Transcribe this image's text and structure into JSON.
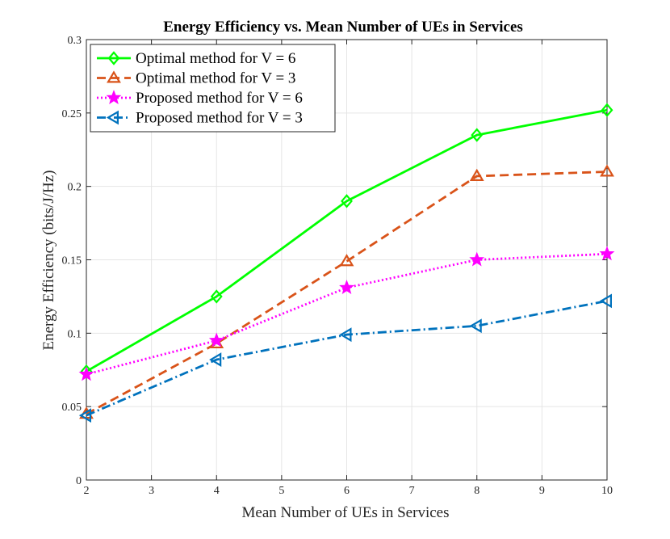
{
  "chart_data": {
    "type": "line",
    "title": "Energy Efficiency vs. Mean Number of UEs in Services",
    "xlabel": "Mean Number of UEs in Services",
    "ylabel": "Energy Efficiency (bits/J/Hz)",
    "xlim": [
      2,
      10
    ],
    "ylim": [
      0,
      0.3
    ],
    "xticks": [
      2,
      3,
      4,
      5,
      6,
      7,
      8,
      9,
      10
    ],
    "yticks": [
      0,
      0.05,
      0.1,
      0.15,
      0.2,
      0.25,
      0.3
    ],
    "xtick_labels": [
      "2",
      "3",
      "4",
      "5",
      "6",
      "7",
      "8",
      "9",
      "10"
    ],
    "ytick_labels": [
      "0",
      "0.05",
      "0.1",
      "0.15",
      "0.2",
      "0.25",
      "0.3"
    ],
    "grid": true,
    "legend_position": "top-left",
    "x": [
      2,
      4,
      6,
      8,
      10
    ],
    "series": [
      {
        "name": "Optimal method for V = 6",
        "values": [
          0.074,
          0.125,
          0.19,
          0.235,
          0.252
        ],
        "color": "#00ff00",
        "dash": "solid",
        "marker": "diamond"
      },
      {
        "name": "Optimal method for V = 3",
        "values": [
          0.045,
          0.093,
          0.149,
          0.207,
          0.21
        ],
        "color": "#d95319",
        "dash": "dashed",
        "marker": "triangle-up"
      },
      {
        "name": "Proposed method for V = 6",
        "values": [
          0.072,
          0.095,
          0.131,
          0.15,
          0.154
        ],
        "color": "#ff00ff",
        "dash": "dotted",
        "marker": "star"
      },
      {
        "name": "Proposed method for V = 3",
        "values": [
          0.044,
          0.082,
          0.099,
          0.105,
          0.122
        ],
        "color": "#0072bd",
        "dash": "dashdot",
        "marker": "triangle-left"
      }
    ]
  }
}
